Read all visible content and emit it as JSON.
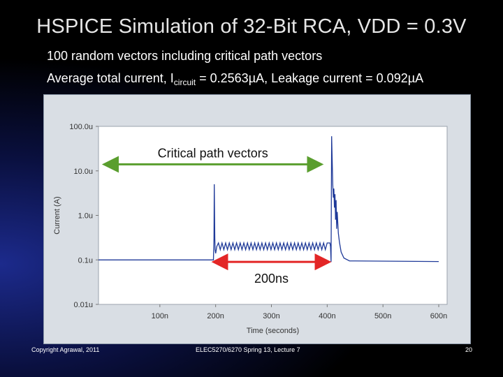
{
  "slide": {
    "title": "HSPICE Simulation of 32-Bit RCA, VDD = 0.3V",
    "bullet1": "100 random vectors including critical path vectors",
    "bullet2_prefix": "Average total current, I",
    "bullet2_sub": "circuit",
    "bullet2_suffix": " = 0.2563µA, Leakage current = 0.092µA"
  },
  "footer": {
    "left": "Copyright Agrawal, 2011",
    "center": "ELEC5270/6270 Spring 13, Lecture 7",
    "right": "20"
  },
  "chart_data": {
    "type": "line",
    "xlabel": "Time (seconds)",
    "ylabel": "Current (A)",
    "yscale": "log",
    "x_unit_label": "ns",
    "xlim": [
      -10,
      615
    ],
    "ylim": [
      0.01,
      100
    ],
    "x_ticks": [
      100,
      200,
      300,
      400,
      500,
      600
    ],
    "x_tick_labels": [
      "100n",
      "200n",
      "300n",
      "400n",
      "500n",
      "600n"
    ],
    "y_ticks": [
      0.01,
      0.1,
      1,
      10,
      100
    ],
    "y_tick_labels": [
      "0.01u",
      "0.1u",
      "1.0u",
      "10.0u",
      "100.0u"
    ],
    "grid": false,
    "series_color": "#1f3a99",
    "series": [
      {
        "x": [
          -10,
          196,
          197,
          197.5,
          198.5,
          199,
          200,
          202,
          205,
          405,
          406,
          407,
          408,
          410,
          411,
          412,
          413,
          414,
          415,
          416,
          417,
          418,
          420,
          422,
          425,
          430,
          440,
          600
        ],
        "y": [
          0.1,
          0.1,
          0.3,
          5.0,
          0.3,
          0.17,
          0.14,
          0.2,
          0.24,
          0.24,
          0.2,
          0.09,
          60,
          5,
          2.5,
          4,
          1.5,
          3,
          0.8,
          2.2,
          0.5,
          1.2,
          0.4,
          0.25,
          0.15,
          0.11,
          0.095,
          0.092
        ]
      }
    ],
    "ripple": {
      "from": 205,
      "to": 401,
      "period": 6.5,
      "low": 0.17,
      "high": 0.24
    },
    "annotations": [
      {
        "text": "Critical path vectors",
        "arrow_from": 0,
        "arrow_to": 390,
        "y": 14,
        "color": "#5a9e2e"
      },
      {
        "text": "200ns",
        "arrow_from": 196,
        "arrow_to": 404,
        "y": 0.09,
        "color": "#e32626"
      }
    ]
  }
}
